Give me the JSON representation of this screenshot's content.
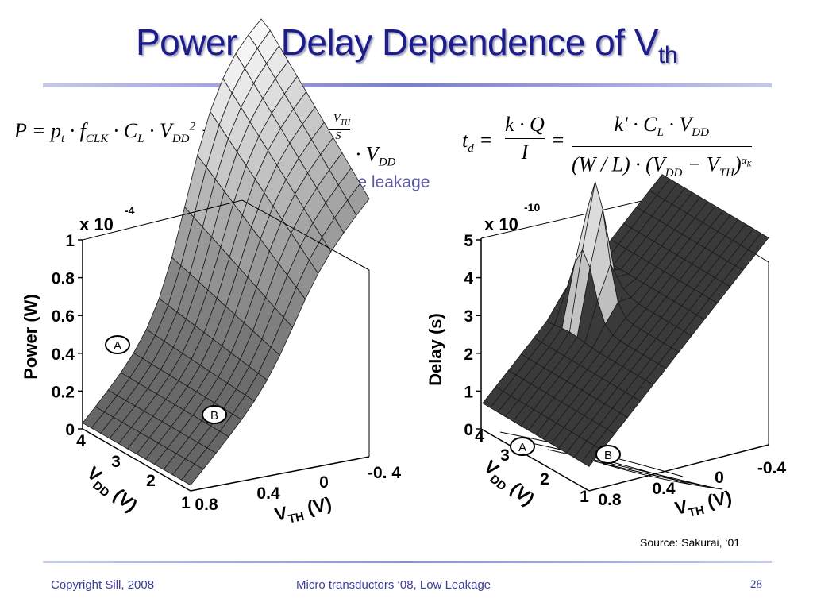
{
  "slide": {
    "title_main": "Power & Delay Dependence of V",
    "title_sub": "th",
    "note": "w.o. gate leakage",
    "source": "Source: Sakurai, ‘01",
    "footer_left": "Copyright Sill, 2008",
    "footer_center": "Micro transductors ‘08, Low Leakage",
    "page_number": "28"
  },
  "chart_data": [
    {
      "type": "surface",
      "zlabel": "Power (W)",
      "zscale_label": "x 10",
      "zscale_exp": "-4",
      "zticks": [
        "0",
        "0.2",
        "0.4",
        "0.6",
        "0.8",
        "1"
      ],
      "zlim": [
        0,
        1
      ],
      "xlabel_main": "V",
      "xlabel_sub": "DD",
      "xlabel_unit": " (V)",
      "xticks": [
        "4",
        "3",
        "2",
        "1"
      ],
      "ylabel_main": "V",
      "ylabel_sub": "TH",
      "ylabel_unit": " (V)",
      "yticks": [
        "0.8",
        "0.4",
        "0",
        "-0. 4"
      ],
      "markers": [
        "A",
        "B"
      ]
    },
    {
      "type": "surface",
      "zlabel": "Delay (s)",
      "zscale_label": "x 10",
      "zscale_exp": "-10",
      "zticks": [
        "0",
        "1",
        "2",
        "3",
        "4",
        "5"
      ],
      "zlim": [
        0,
        5
      ],
      "xlabel_main": "V",
      "xlabel_sub": "DD",
      "xlabel_unit": " (V)",
      "xticks": [
        "4",
        "3",
        "2",
        "1"
      ],
      "ylabel_main": "V",
      "ylabel_sub": "TH",
      "ylabel_unit": " (V)",
      "yticks": [
        "0.8",
        "0.4",
        "0",
        "-0.4"
      ],
      "markers": [
        "A",
        "B"
      ]
    }
  ],
  "colors": {
    "title": "#1c1c8c",
    "note": "#5a5aa6",
    "footer": "#3d3d9e"
  }
}
